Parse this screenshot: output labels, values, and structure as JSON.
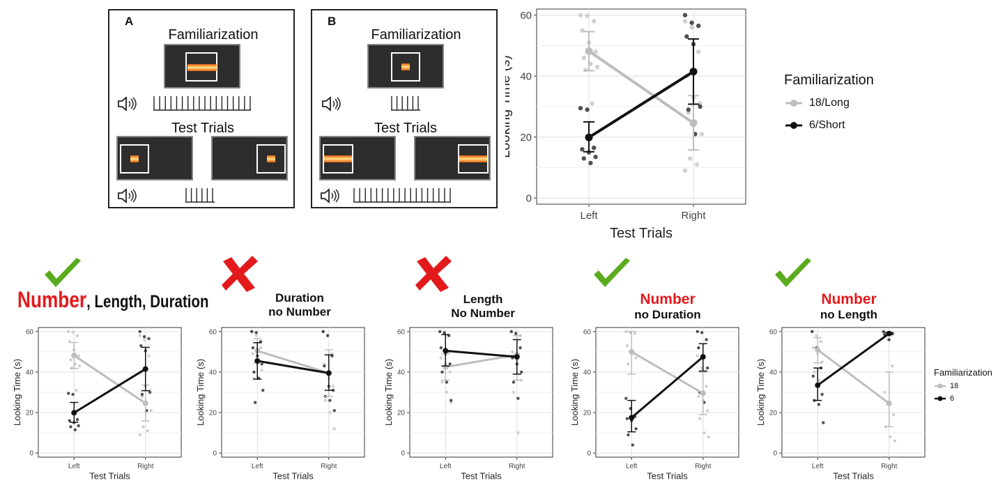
{
  "panel_a": {
    "label": "A",
    "familiarization": "Familiarization",
    "test_trials": "Test Trials"
  },
  "panel_b": {
    "label": "B",
    "familiarization": "Familiarization",
    "test_trials": "Test Trials"
  },
  "headings": {
    "c1_number": "Number",
    "c1_rest": ", Length, Duration",
    "c2_line1": "Duration",
    "c2_line2": "no Number",
    "c3_line1": "Length",
    "c3_line2": "No Number",
    "c4_line1": "Number",
    "c4_line2": "no Duration",
    "c5_line1": "Number",
    "c5_line2": "no Length"
  },
  "colors": {
    "long_series": "#bdbdbd",
    "short_series": "#111111",
    "check": "#5aab1e",
    "cross": "#e31a1c",
    "heading_red": "#e31a1c"
  },
  "legend_main": {
    "title": "Familiarization",
    "items": [
      "18/Long",
      "6/Short"
    ]
  },
  "legend_small": {
    "title": "Familiarization",
    "items": [
      "18",
      "6"
    ]
  },
  "chart_data": [
    {
      "id": "main",
      "type": "line",
      "xlabel": "Test Trials",
      "ylabel": "Looking Time (s)",
      "categories": [
        "Left",
        "Right"
      ],
      "yticks": [
        0,
        20,
        40,
        60
      ],
      "ylim": [
        -2,
        62
      ],
      "series": [
        {
          "name": "18/Long",
          "values": [
            48.2,
            24.6
          ],
          "err": [
            [
              41.8,
              54.6
            ],
            [
              15.8,
              33.6
            ]
          ],
          "pts": [
            [
              60,
              59.8,
              58,
              55,
              51,
              48,
              46,
              44,
              43,
              42,
              31
            ],
            [
              58,
              56,
              48,
              40,
              33,
              31,
              28,
              25,
              21,
              13,
              11,
              9
            ]
          ]
        },
        {
          "name": "6/Short",
          "values": [
            19.9,
            41.5
          ],
          "err": [
            [
              15.2,
              25.0
            ],
            [
              30.8,
              52.2
            ]
          ],
          "pts": [
            [
              29.5,
              29,
              16.5,
              16,
              15,
              13.5,
              13,
              11.5
            ],
            [
              60,
              57.5,
              56.5,
              53,
              50.5,
              30,
              29,
              21
            ]
          ]
        }
      ]
    },
    {
      "id": "c1",
      "type": "line",
      "xlabel": "Test Trials",
      "ylabel": "Looking Time (s)",
      "categories": [
        "Left",
        "Right"
      ],
      "yticks": [
        0,
        20,
        40,
        60
      ],
      "ylim": [
        -2,
        62
      ],
      "series": [
        {
          "name": "18",
          "values": [
            48.2,
            24.6
          ],
          "err": [
            [
              41.8,
              54.6
            ],
            [
              15.8,
              33.6
            ]
          ],
          "pts": [
            [
              60,
              59.8,
              58,
              55,
              51,
              48,
              46,
              44,
              43,
              42,
              31
            ],
            [
              58,
              56,
              48,
              40,
              33,
              31,
              28,
              25,
              21,
              13,
              11,
              9
            ]
          ]
        },
        {
          "name": "6",
          "values": [
            19.9,
            41.5
          ],
          "err": [
            [
              15.2,
              25.0
            ],
            [
              30.8,
              52.2
            ]
          ],
          "pts": [
            [
              29.5,
              29,
              16.5,
              16,
              15,
              13.5,
              13,
              11.5
            ],
            [
              60,
              57.5,
              56.5,
              53,
              50.5,
              30,
              29,
              21
            ]
          ]
        }
      ]
    },
    {
      "id": "c2",
      "type": "line",
      "xlabel": "Test Trials",
      "ylabel": "Looking Time (s)",
      "categories": [
        "Left",
        "Right"
      ],
      "yticks": [
        0,
        20,
        40,
        60
      ],
      "ylim": [
        -2,
        62
      ],
      "series": [
        {
          "name": "18",
          "values": [
            50.5,
            39.5
          ],
          "err": [
            [
              44.5,
              56.5
            ],
            [
              28,
              51
            ]
          ],
          "pts": [
            [
              60,
              58,
              52,
              49,
              44,
              41,
              37
            ],
            [
              60,
              58,
              49,
              44,
              37,
              33,
              26,
              20,
              12
            ]
          ]
        },
        {
          "name": "6",
          "values": [
            45.5,
            39.5
          ],
          "err": [
            [
              36.5,
              54.5
            ],
            [
              31,
              48.5
            ]
          ],
          "pts": [
            [
              60,
              59.5,
              55,
              52,
              48,
              44,
              40,
              37,
              31,
              25
            ],
            [
              60,
              58,
              48,
              43,
              33,
              31,
              28,
              26,
              21
            ]
          ]
        }
      ]
    },
    {
      "id": "c3",
      "type": "line",
      "xlabel": "Test Trials",
      "ylabel": "Looking Time (s)",
      "categories": [
        "Left",
        "Right"
      ],
      "yticks": [
        0,
        20,
        40,
        60
      ],
      "ylim": [
        -2,
        62
      ],
      "series": [
        {
          "name": "18",
          "values": [
            42.5,
            48.5
          ],
          "err": [
            [
              36,
              49
            ],
            [
              36,
              58
            ]
          ],
          "pts": [
            [
              60,
              59,
              50,
              47,
              44,
              40,
              35,
              30,
              25
            ],
            [
              60,
              59.5,
              58,
              50,
              44,
              36,
              30,
              10
            ]
          ]
        },
        {
          "name": "6",
          "values": [
            50.5,
            47.5
          ],
          "err": [
            [
              43,
              58.5
            ],
            [
              39,
              56
            ]
          ],
          "pts": [
            [
              60,
              59.5,
              58,
              52,
              49,
              44,
              40,
              35,
              26
            ],
            [
              60,
              59,
              52,
              47,
              44,
              40,
              35,
              27
            ]
          ]
        }
      ]
    },
    {
      "id": "c4",
      "type": "line",
      "xlabel": "Test Trials",
      "ylabel": "Looking Time (s)",
      "categories": [
        "Left",
        "Right"
      ],
      "yticks": [
        0,
        20,
        40,
        60
      ],
      "ylim": [
        -2,
        62
      ],
      "series": [
        {
          "name": "18",
          "values": [
            50,
            29.5
          ],
          "err": [
            [
              39,
              60
            ],
            [
              19,
              40
            ]
          ],
          "pts": [
            [
              60,
              59.5,
              59,
              53,
              49,
              47,
              44
            ],
            [
              48,
              42,
              33,
              28,
              26,
              21,
              17,
              10,
              8
            ]
          ]
        },
        {
          "name": "6",
          "values": [
            17.5,
            47.5
          ],
          "err": [
            [
              10.5,
              26
            ],
            [
              40.5,
              54
            ]
          ],
          "pts": [
            [
              27,
              22,
              18,
              17,
              16,
              12,
              9,
              4
            ],
            [
              60,
              59.5,
              56,
              52,
              48,
              42,
              30,
              25
            ]
          ]
        }
      ]
    },
    {
      "id": "c5",
      "type": "line",
      "xlabel": "Test Trials",
      "ylabel": "Looking Time (s)",
      "categories": [
        "Left",
        "Right"
      ],
      "yticks": [
        0,
        20,
        40,
        60
      ],
      "ylim": [
        -2,
        62
      ],
      "series": [
        {
          "name": "18",
          "values": [
            51,
            24.5
          ],
          "err": [
            [
              44.5,
              57
            ],
            [
              13,
              40
            ]
          ],
          "pts": [
            [
              60,
              58,
              55,
              52,
              49,
              45,
              40,
              36
            ],
            [
              59.5,
              56,
              43,
              30,
              24,
              19,
              13,
              8,
              6
            ]
          ]
        },
        {
          "name": "6",
          "values": [
            33.5,
            59
          ],
          "err": [
            [
              26,
              42
            ],
            [
              58.5,
              59.5
            ]
          ],
          "pts": [
            [
              60,
              52,
              42,
              38,
              34,
              29,
              26,
              24,
              15
            ],
            [
              60,
              59.5,
              59,
              58.5,
              56
            ]
          ]
        }
      ]
    }
  ]
}
